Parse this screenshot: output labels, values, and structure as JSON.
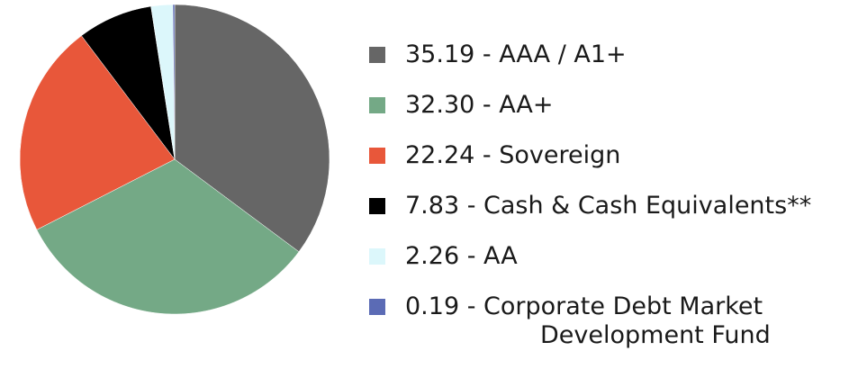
{
  "chart_data": {
    "type": "pie",
    "title": "",
    "start_angle_deg": 0,
    "direction": "clockwise",
    "slices": [
      {
        "value": 35.19,
        "label": "35.19 - AAA / A1+",
        "color": "#666666"
      },
      {
        "value": 32.3,
        "label": "32.30 - AA+",
        "color": "#74a986"
      },
      {
        "value": 22.24,
        "label": "22.24 - Sovereign",
        "color": "#e8573a"
      },
      {
        "value": 7.83,
        "label": "7.83 - Cash & Cash Equivalents**",
        "color": "#000000"
      },
      {
        "value": 2.26,
        "label": "2.26 - AA",
        "color": "#dcf7fb"
      },
      {
        "value": 0.19,
        "label": "0.19 - Corporate Debt Market",
        "label_line2": "Development Fund",
        "color": "#5b6bb5"
      }
    ],
    "legend_placement": "right"
  }
}
